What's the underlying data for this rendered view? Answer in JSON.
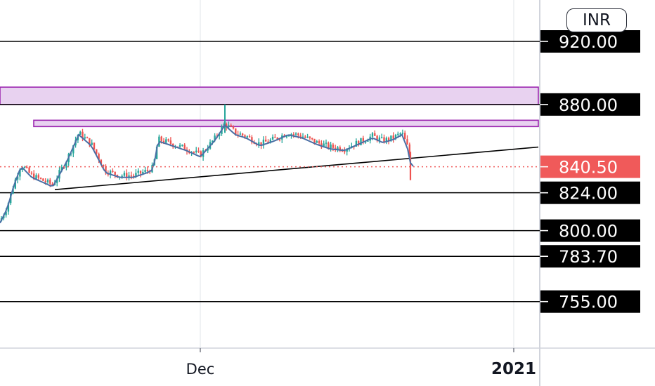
{
  "currency": "INR",
  "chart_data": {
    "type": "candlestick",
    "x_ticks": [
      "Dec",
      "2021"
    ],
    "y_range": [
      740,
      935
    ],
    "current_price": 840.5,
    "horizontal_levels": [
      920.0,
      880.0,
      824.0,
      800.0,
      783.7,
      755.0
    ],
    "price_labels": [
      {
        "value": 920.0,
        "text": "920.00",
        "color": "#000000"
      },
      {
        "value": 880.0,
        "text": "880.00",
        "color": "#000000"
      },
      {
        "value": 840.5,
        "text": "840.50",
        "color": "#f05a5a"
      },
      {
        "value": 824.0,
        "text": "824.00",
        "color": "#000000"
      },
      {
        "value": 800.0,
        "text": "800.00",
        "color": "#000000"
      },
      {
        "value": 783.7,
        "text": "783.70",
        "color": "#000000"
      },
      {
        "value": 755.0,
        "text": "755.00",
        "color": "#000000"
      }
    ],
    "resistance_zones": [
      {
        "from": 880,
        "to": 891
      },
      {
        "from": 866,
        "to": 870
      }
    ],
    "trendline": {
      "from": 826,
      "to": 853
    },
    "colors": {
      "up": "#26a69a",
      "down": "#ef5350",
      "ma": "#4a6fa5",
      "zone": "#e8d2f0",
      "zone_border": "#9c27b0",
      "current": "#f05a5a"
    }
  }
}
